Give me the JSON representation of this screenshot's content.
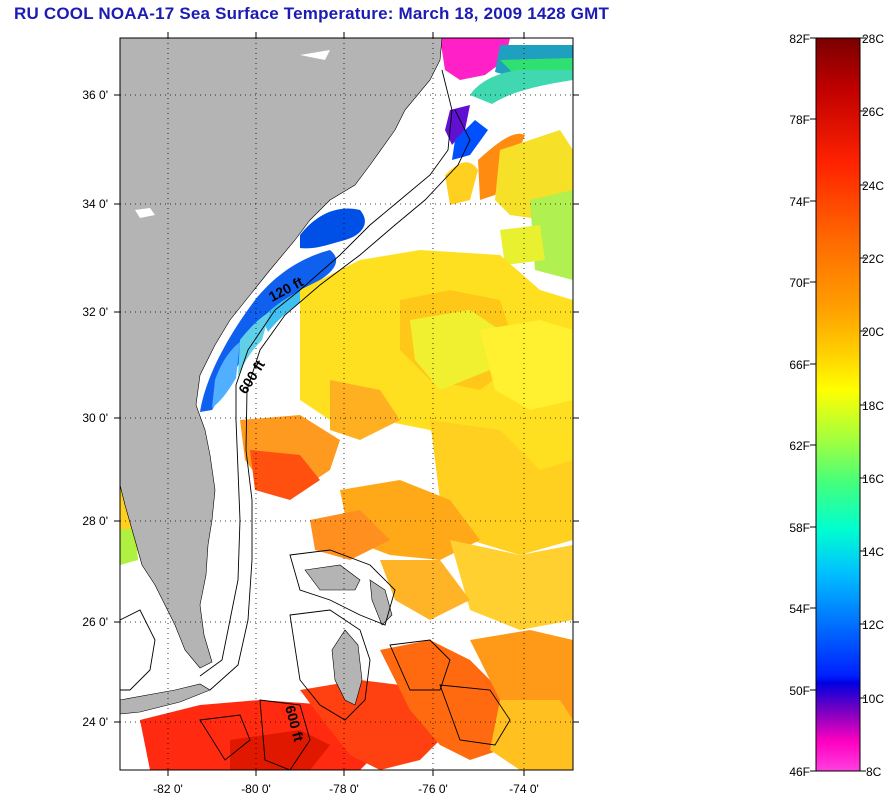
{
  "title": "RU COOL  NOAA-17  Sea Surface Temperature:  March 18, 2009 1428 GMT",
  "map": {
    "lat_labels": [
      "36 0'",
      "34 0'",
      "32 0'",
      "30 0'",
      "28 0'",
      "26 0'",
      "24 0'"
    ],
    "lon_labels": [
      "-82 0'",
      "-80 0'",
      "-78 0'",
      "-76 0'",
      "-74 0'"
    ],
    "contours": [
      "120 ft",
      "600 ft",
      "600 ft"
    ],
    "colors": {
      "land": "#b4b4b4",
      "ocean_nodata": "#ffffff",
      "grid": "#000000"
    }
  },
  "colorbar": {
    "fahrenheit": [
      "82F",
      "78F",
      "74F",
      "70F",
      "66F",
      "62F",
      "58F",
      "54F",
      "50F",
      "46F"
    ],
    "celsius": [
      "28C",
      "26C",
      "24C",
      "22C",
      "20C",
      "18C",
      "16C",
      "14C",
      "12C",
      "10C",
      "8C"
    ],
    "gradient": [
      "#7a0000",
      "#c00000",
      "#ff2200",
      "#ff6600",
      "#ffa000",
      "#ffd000",
      "#ffff00",
      "#a0ff40",
      "#40ff80",
      "#00ffd0",
      "#00c0ff",
      "#0070ff",
      "#0020ff",
      "#0000e0",
      "#8000c0",
      "#ff00c0",
      "#ff40e0"
    ]
  }
}
